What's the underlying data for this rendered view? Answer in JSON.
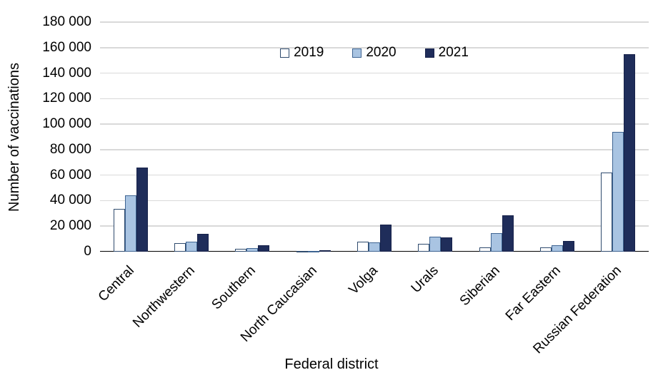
{
  "chart_data": {
    "type": "bar",
    "title": "",
    "xlabel": "Federal district",
    "ylabel": "Number of vaccinations",
    "categories": [
      "Central",
      "Northwestern",
      "Southern",
      "North Caucasian",
      "Volga",
      "Urals",
      "Siberian",
      "Far Eastern",
      "Russian Federation"
    ],
    "series": [
      {
        "name": "2019",
        "fill": "#FFFFFF",
        "stroke": "#2F4B6E",
        "values": [
          33500,
          6500,
          2000,
          300,
          8000,
          6000,
          3500,
          3500,
          62000
        ]
      },
      {
        "name": "2020",
        "fill": "#A9C4E2",
        "stroke": "#3E6492",
        "values": [
          44000,
          8000,
          3000,
          500,
          7000,
          12000,
          14500,
          5000,
          94000
        ]
      },
      {
        "name": "2021",
        "fill": "#1F2D5A",
        "stroke": "#17224A",
        "values": [
          66000,
          14000,
          5000,
          1200,
          21000,
          11000,
          28500,
          8500,
          155000
        ]
      }
    ],
    "ylim": [
      0,
      180000
    ],
    "ytick_step": 20000,
    "yticks": [
      "0",
      "20 000",
      "40 000",
      "60 000",
      "80 000",
      "100 000",
      "120 000",
      "140 000",
      "160 000",
      "180 000"
    ],
    "grid": "horizontal",
    "gridline_color": "#D9D9D9",
    "axis_color": "#000000",
    "legend_position": "top-center",
    "x_label_rotation": -45
  }
}
